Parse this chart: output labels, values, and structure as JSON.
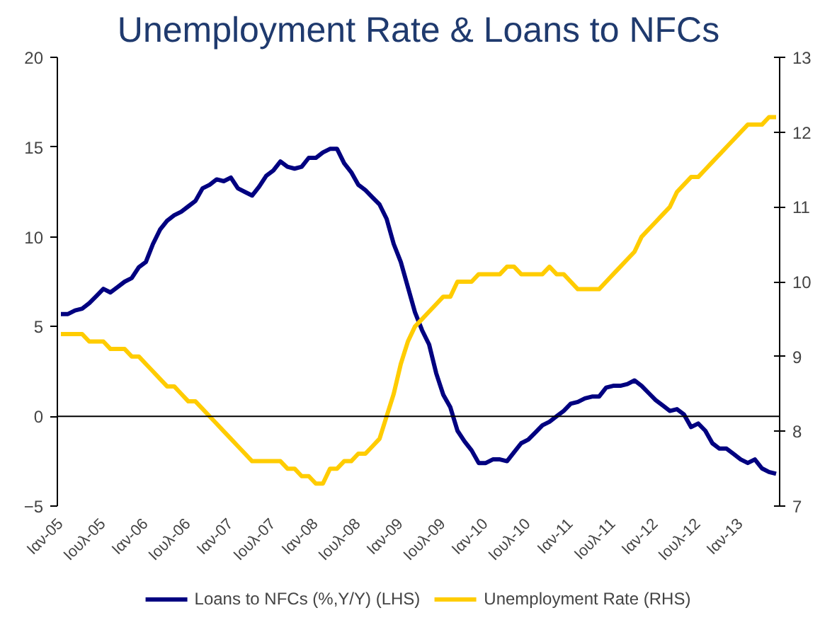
{
  "chart_data": {
    "type": "line",
    "title": "Unemployment Rate & Loans to NFCs",
    "categories": [
      "Ιαν-05",
      null,
      null,
      null,
      null,
      null,
      "Ιουλ-05",
      null,
      null,
      null,
      null,
      null,
      "Ιαν-06",
      null,
      null,
      null,
      null,
      null,
      "Ιουλ-06",
      null,
      null,
      null,
      null,
      null,
      "Ιαν-07",
      null,
      null,
      null,
      null,
      null,
      "Ιουλ-07",
      null,
      null,
      null,
      null,
      null,
      "Ιαν-08",
      null,
      null,
      null,
      null,
      null,
      "Ιουλ-08",
      null,
      null,
      null,
      null,
      null,
      "Ιαν-09",
      null,
      null,
      null,
      null,
      null,
      "Ιουλ-09",
      null,
      null,
      null,
      null,
      null,
      "Ιαν-10",
      null,
      null,
      null,
      null,
      null,
      "Ιουλ-10",
      null,
      null,
      null,
      null,
      null,
      "Ιαν-11",
      null,
      null,
      null,
      null,
      null,
      "Ιουλ-11",
      null,
      null,
      null,
      null,
      null,
      "Ιαν-12",
      null,
      null,
      null,
      null,
      null,
      "Ιουλ-12",
      null,
      null,
      null,
      null,
      null,
      "Ιαν-13",
      null,
      null,
      null,
      null,
      null
    ],
    "series": [
      {
        "name": "Loans to NFCs (%,Y/Y) (LHS)",
        "color": "#000080",
        "values": [
          5.7,
          5.7,
          5.9,
          6.0,
          6.3,
          6.7,
          7.1,
          6.9,
          7.2,
          7.5,
          7.7,
          8.3,
          8.6,
          9.6,
          10.4,
          10.9,
          11.2,
          11.4,
          11.7,
          12.0,
          12.7,
          12.9,
          13.2,
          13.1,
          13.3,
          12.7,
          12.5,
          12.3,
          12.8,
          13.4,
          13.7,
          14.2,
          13.9,
          13.8,
          13.9,
          14.4,
          14.4,
          14.7,
          14.9,
          14.9,
          14.1,
          13.6,
          12.9,
          12.6,
          12.2,
          11.8,
          11.0,
          9.6,
          8.6,
          7.2,
          5.8,
          4.8,
          4.0,
          2.4,
          1.2,
          0.5,
          -0.8,
          -1.4,
          -1.9,
          -2.6,
          -2.6,
          -2.4,
          -2.4,
          -2.5,
          -2.0,
          -1.5,
          -1.3,
          -0.9,
          -0.5,
          -0.3,
          0.0,
          0.3,
          0.7,
          0.8,
          1.0,
          1.1,
          1.1,
          1.6,
          1.7,
          1.7,
          1.8,
          2.0,
          1.7,
          1.3,
          0.9,
          0.6,
          0.3,
          0.4,
          0.1,
          -0.6,
          -0.4,
          -0.8,
          -1.5,
          -1.8,
          -1.8,
          -2.1,
          -2.4,
          -2.6,
          -2.4,
          -2.9,
          -3.1,
          -3.2
        ]
      },
      {
        "name": "Unemployment Rate (RHS)",
        "color": "#ffcc00",
        "axis": "y2",
        "values": [
          9.3,
          9.3,
          9.3,
          9.3,
          9.2,
          9.2,
          9.2,
          9.1,
          9.1,
          9.1,
          9.0,
          9.0,
          8.9,
          8.8,
          8.7,
          8.6,
          8.6,
          8.5,
          8.4,
          8.4,
          8.3,
          8.2,
          8.1,
          8.0,
          7.9,
          7.8,
          7.7,
          7.6,
          7.6,
          7.6,
          7.6,
          7.6,
          7.5,
          7.5,
          7.4,
          7.4,
          7.3,
          7.3,
          7.5,
          7.5,
          7.6,
          7.6,
          7.7,
          7.7,
          7.8,
          7.9,
          8.2,
          8.5,
          8.9,
          9.2,
          9.4,
          9.5,
          9.6,
          9.7,
          9.8,
          9.8,
          10.0,
          10.0,
          10.0,
          10.1,
          10.1,
          10.1,
          10.1,
          10.2,
          10.2,
          10.1,
          10.1,
          10.1,
          10.1,
          10.2,
          10.1,
          10.1,
          10.0,
          9.9,
          9.9,
          9.9,
          9.9,
          10.0,
          10.1,
          10.2,
          10.3,
          10.4,
          10.6,
          10.7,
          10.8,
          10.9,
          11.0,
          11.2,
          11.3,
          11.4,
          11.4,
          11.5,
          11.6,
          11.7,
          11.8,
          11.9,
          12.0,
          12.1,
          12.1,
          12.1,
          12.2,
          12.2
        ]
      }
    ],
    "ylim": [
      -5,
      20
    ],
    "yticks": [
      -5,
      0,
      5,
      10,
      15,
      20
    ],
    "y2lim": [
      7,
      13
    ],
    "y2ticks": [
      7,
      8,
      9,
      10,
      11,
      12,
      13
    ],
    "ref_lines": [
      {
        "axis": "y",
        "value": 0,
        "color": "#000000"
      }
    ],
    "grid": false,
    "legend": "bottom",
    "line_style": "solid",
    "marker": "none"
  }
}
